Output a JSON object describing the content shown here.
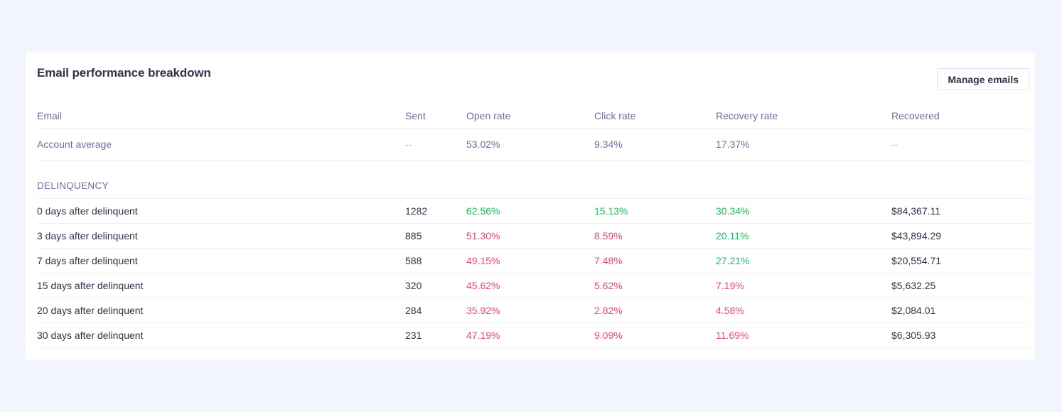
{
  "card": {
    "title": "Email performance breakdown",
    "manage_button_label": "Manage emails"
  },
  "columns": [
    "Email",
    "Sent",
    "Open rate",
    "Click rate",
    "Recovery rate",
    "Recovered"
  ],
  "account_average": {
    "label": "Account average",
    "sent": "--",
    "open_rate": "53.02%",
    "click_rate": "9.34%",
    "recovery_rate": "17.37%",
    "recovered": "--"
  },
  "section": {
    "label": "DELINQUENCY"
  },
  "rows": [
    {
      "email": "0 days after delinquent",
      "sent": "1282",
      "open_rate": "62.56%",
      "open_status": "good",
      "click_rate": "15.13%",
      "click_status": "good",
      "recovery_rate": "30.34%",
      "recovery_status": "good",
      "recovered": "$84,367.11"
    },
    {
      "email": "3 days after delinquent",
      "sent": "885",
      "open_rate": "51.30%",
      "open_status": "bad",
      "click_rate": "8.59%",
      "click_status": "bad",
      "recovery_rate": "20.11%",
      "recovery_status": "good",
      "recovered": "$43,894.29"
    },
    {
      "email": "7 days after delinquent",
      "sent": "588",
      "open_rate": "49.15%",
      "open_status": "bad",
      "click_rate": "7.48%",
      "click_status": "bad",
      "recovery_rate": "27.21%",
      "recovery_status": "good",
      "recovered": "$20,554.71"
    },
    {
      "email": "15 days after delinquent",
      "sent": "320",
      "open_rate": "45.62%",
      "open_status": "bad",
      "click_rate": "5.62%",
      "click_status": "bad",
      "recovery_rate": "7.19%",
      "recovery_status": "bad",
      "recovered": "$5,632.25"
    },
    {
      "email": "20 days after delinquent",
      "sent": "284",
      "open_rate": "35.92%",
      "open_status": "bad",
      "click_rate": "2.82%",
      "click_status": "bad",
      "recovery_rate": "4.58%",
      "recovery_status": "bad",
      "recovered": "$2,084.01"
    },
    {
      "email": "30 days after delinquent",
      "sent": "231",
      "open_rate": "47.19%",
      "open_status": "bad",
      "click_rate": "9.09%",
      "click_status": "bad",
      "recovery_rate": "11.69%",
      "recovery_status": "bad",
      "recovered": "$6,305.93"
    }
  ],
  "colors": {
    "page_background": "#f2f5fd",
    "good": "#1fb864",
    "bad": "#e8457a",
    "muted_text": "#6c6f9e",
    "primary_text": "#2f3349"
  }
}
